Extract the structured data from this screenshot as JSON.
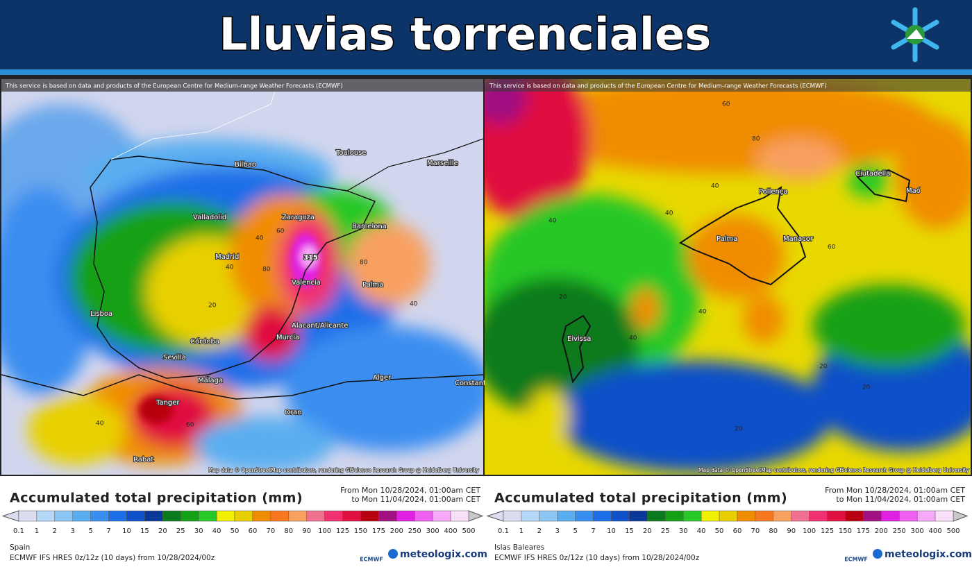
{
  "header": {
    "title": "Lluvias torrenciales"
  },
  "scale": {
    "labels": [
      0.1,
      1,
      2,
      3,
      5,
      7,
      10,
      15,
      20,
      25,
      30,
      40,
      50,
      60,
      70,
      80,
      90,
      100,
      125,
      150,
      175,
      200,
      250,
      300,
      400,
      500
    ],
    "colors": [
      "#dcdcf0",
      "#b4d8f8",
      "#8cc6f4",
      "#5aaef0",
      "#3a8ef0",
      "#1e6ee8",
      "#1050c8",
      "#0a3898",
      "#0a7a1e",
      "#14a014",
      "#28c828",
      "#f0f000",
      "#e8d000",
      "#f08c00",
      "#f87820",
      "#f8a060",
      "#f07090",
      "#f03070",
      "#e01040",
      "#b80010",
      "#a01080",
      "#e020e0",
      "#f060f0",
      "#f8a8f8",
      "#f8e0f8"
    ],
    "low_color": "#dcdcf0",
    "high_color": "#c8c8c8"
  },
  "panels": [
    {
      "attribution": "This service is based on data and products of the European Centre for Medium-range Weather Forecasts (ECMWF)",
      "map_credit": "Map data © OpenStreetMap contributors, rendering GIScience Research Group @ Heidelberg University",
      "places": [
        "Bilbao",
        "Toulouse",
        "Marseille",
        "Valladolid",
        "Zaragoza",
        "Barcelona",
        "Madrid",
        "Valencia",
        "Palma",
        "Lisboa",
        "Alacant/Alicante",
        "Murcia",
        "Córdoba",
        "Sevilla",
        "Málaga",
        "Alger",
        "Tanger",
        "Oran",
        "Rabat",
        "Constantine"
      ],
      "contours": [
        315,
        60,
        40,
        80,
        40,
        20,
        40,
        60,
        40,
        80
      ],
      "legend_title": "Accumulated total precipitation (mm)",
      "from": "From Mon 10/28/2024, 01:00am CET",
      "to": "to Mon 11/04/2024, 01:00am CET",
      "region": "Spain",
      "model": "ECMWF IFS HRES 0z/12z (10 days) from 10/28/2024/00z"
    },
    {
      "attribution": "This service is based on data and products of the European Centre for Medium-range Weather Forecasts (ECMWF)",
      "map_credit": "Map data © OpenStreetMap contributors, rendering GIScience Research Group @ Heidelberg University",
      "places": [
        "Ciutadella",
        "Maó",
        "Pollença",
        "Palma",
        "Manacor",
        "Eivissa"
      ],
      "contours": [
        60,
        80,
        40,
        40,
        40,
        60,
        20,
        40,
        40,
        20,
        20,
        20
      ],
      "legend_title": "Accumulated total precipitation (mm)",
      "from": "From Mon 10/28/2024, 01:00am CET",
      "to": "to Mon 11/04/2024, 01:00am CET",
      "region": "Islas Baleares",
      "model": "ECMWF IFS HRES 0z/12z (10 days) from 10/28/2024/00z"
    }
  ],
  "brand": {
    "ecmwf": "ECMWF",
    "site": "meteologix.com"
  }
}
